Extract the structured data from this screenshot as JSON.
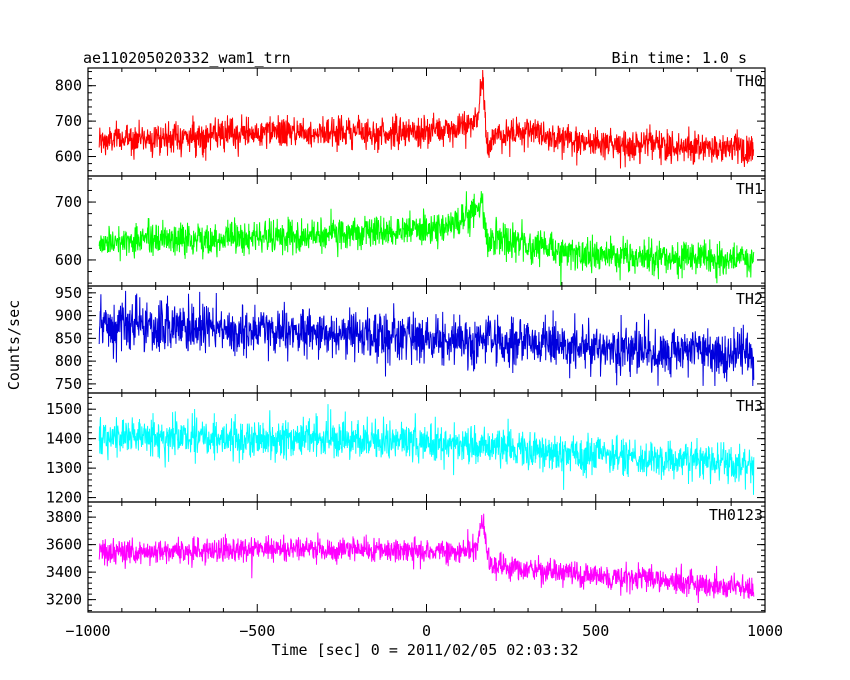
{
  "title_left": "ae110205020332_wam1_trn",
  "title_right": "Bin time: 1.0 s",
  "ylabel": "Counts/sec",
  "xlabel": "Time [sec] 0 = 2011/02/05 02:03:32",
  "chart_data": [
    {
      "type": "line",
      "name": "TH0",
      "color": "#ff0000",
      "x_range": [
        -1000,
        1000
      ],
      "ylim": [
        545,
        850
      ],
      "yticks": [
        600,
        700,
        800
      ],
      "x": [
        -967,
        -900,
        -800,
        -700,
        -600,
        -500,
        -400,
        -300,
        -200,
        -100,
        0,
        50,
        100,
        150,
        165,
        180,
        200,
        300,
        400,
        500,
        600,
        700,
        800,
        900,
        967
      ],
      "y": [
        640,
        650,
        655,
        655,
        660,
        665,
        670,
        670,
        670,
        665,
        670,
        675,
        680,
        700,
        820,
        620,
        660,
        670,
        655,
        640,
        635,
        630,
        630,
        625,
        615
      ],
      "noise": 40
    },
    {
      "type": "line",
      "name": "TH1",
      "color": "#00ff00",
      "x_range": [
        -1000,
        1000
      ],
      "ylim": [
        555,
        745
      ],
      "yticks": [
        600,
        700
      ],
      "x": [
        -967,
        -900,
        -800,
        -700,
        -600,
        -500,
        -400,
        -300,
        -200,
        -100,
        0,
        100,
        150,
        165,
        180,
        200,
        300,
        400,
        500,
        600,
        700,
        800,
        900,
        967
      ],
      "y": [
        630,
        632,
        635,
        635,
        638,
        640,
        640,
        642,
        645,
        648,
        655,
        668,
        680,
        715,
        620,
        640,
        625,
        615,
        608,
        605,
        602,
        600,
        600,
        598
      ],
      "noise": 26
    },
    {
      "type": "line",
      "name": "TH2",
      "color": "#0000dd",
      "x_range": [
        -1000,
        1000
      ],
      "ylim": [
        730,
        965
      ],
      "yticks": [
        750,
        800,
        850,
        900,
        950
      ],
      "x": [
        -967,
        -900,
        -800,
        -700,
        -600,
        -500,
        -400,
        -300,
        -200,
        -100,
        0,
        100,
        200,
        300,
        400,
        500,
        600,
        700,
        800,
        900,
        967
      ],
      "y": [
        875,
        875,
        872,
        870,
        868,
        865,
        862,
        860,
        858,
        855,
        850,
        848,
        845,
        840,
        835,
        830,
        825,
        822,
        818,
        815,
        812
      ],
      "noise": 50
    },
    {
      "type": "line",
      "name": "TH3",
      "color": "#00ffff",
      "x_range": [
        -1000,
        1000
      ],
      "ylim": [
        1185,
        1555
      ],
      "yticks": [
        1200,
        1300,
        1400,
        1500
      ],
      "x": [
        -967,
        -900,
        -800,
        -700,
        -600,
        -500,
        -400,
        -300,
        -200,
        -100,
        0,
        100,
        200,
        300,
        400,
        500,
        600,
        700,
        800,
        900,
        967
      ],
      "y": [
        1400,
        1405,
        1405,
        1405,
        1405,
        1400,
        1400,
        1400,
        1395,
        1390,
        1385,
        1380,
        1370,
        1360,
        1350,
        1345,
        1335,
        1330,
        1325,
        1320,
        1315
      ],
      "noise": 60
    },
    {
      "type": "line",
      "name": "TH0123",
      "color": "#ff00ff",
      "x_range": [
        -1000,
        1000
      ],
      "ylim": [
        3110,
        3910
      ],
      "yticks": [
        3200,
        3400,
        3600,
        3800
      ],
      "x": [
        -967,
        -900,
        -800,
        -700,
        -600,
        -500,
        -400,
        -300,
        -200,
        -100,
        0,
        100,
        150,
        165,
        180,
        200,
        300,
        400,
        500,
        600,
        700,
        800,
        900,
        967
      ],
      "y": [
        3540,
        3545,
        3550,
        3555,
        3560,
        3565,
        3565,
        3565,
        3560,
        3555,
        3550,
        3545,
        3570,
        3820,
        3500,
        3450,
        3420,
        3400,
        3370,
        3360,
        3340,
        3320,
        3300,
        3290
      ],
      "noise": 85
    }
  ],
  "x_axis": {
    "range": [
      -1000,
      1000
    ],
    "ticks": [
      -1000,
      -500,
      0,
      500,
      1000
    ],
    "tick_labels": [
      "−1000",
      "−500",
      "0",
      "500",
      "1000"
    ]
  }
}
